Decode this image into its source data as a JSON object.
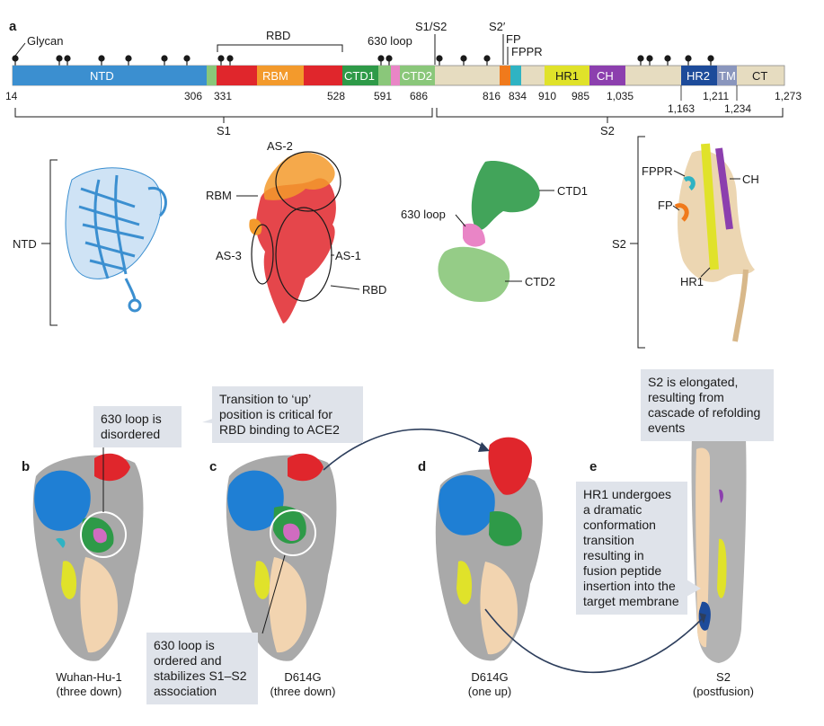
{
  "panel_a": {
    "label": "a",
    "glycan_label": "Glycan",
    "rbd_bracket_label": "RBD",
    "loop630_label": "630 loop",
    "s1s2_label": "S1/S2",
    "s2prime_label": "S2′",
    "fp_label": "FP",
    "fppr_label": "FPPR",
    "s1_label": "S1",
    "s2_label": "S2",
    "domains": [
      {
        "name": "NTD",
        "color": "#3b8fd0"
      },
      {
        "name": "RBM",
        "color": "#f39a2c"
      },
      {
        "name": "CTD1",
        "color": "#2e9a48"
      },
      {
        "name": "CTD2",
        "color": "#e985c6"
      },
      {
        "name": "HR1",
        "color": "#e0e22a"
      },
      {
        "name": "CH",
        "color": "#8c3fae"
      },
      {
        "name": "HR2",
        "color": "#1d4b9a"
      },
      {
        "name": "TM",
        "color": "#8a96bd"
      },
      {
        "name": "CT",
        "color": "#e6dcc0"
      }
    ],
    "positions_top": [
      "14",
      "306",
      "331",
      "528",
      "591",
      "686",
      "816",
      "834",
      "910",
      "985",
      "1,035",
      "1,211",
      "1,273"
    ],
    "positions_bottom": [
      "1,163",
      "1,234"
    ]
  },
  "structures": {
    "ntd_label": "NTD",
    "as2_label": "AS-2",
    "rbm_label": "RBM",
    "as3_label": "AS-3",
    "as1_label": "AS-1",
    "rbd_label": "RBD",
    "loop630_label": "630 loop",
    "ctd1_label": "CTD1",
    "ctd2_label": "CTD2",
    "s2_label": "S2",
    "fppr_label": "FPPR",
    "ch_label": "CH",
    "fp_label": "FP",
    "hr1_label": "HR1"
  },
  "panels": {
    "b": "b",
    "c": "c",
    "d": "d",
    "e": "e"
  },
  "callouts": {
    "disordered": "630 loop is disordered",
    "transition": "Transition to ‘up’ position is critical for RBD binding to ACE2",
    "elongated": "S2 is elongated, resulting from cascade of refolding events",
    "hr1": "HR1 undergoes a dramatic conformation transition resulting in fusion peptide insertion into the target membrane",
    "ordered": "630 loop is ordered and stabilizes S1–S2 association"
  },
  "captions": {
    "b_line1": "Wuhan-Hu-1",
    "b_line2": "(three down)",
    "c_line1": "D614G",
    "c_line2": "(three down)",
    "d_line1": "D614G",
    "d_line2": "(one up)",
    "e_line1": "S2",
    "e_line2": "(postfusion)"
  }
}
